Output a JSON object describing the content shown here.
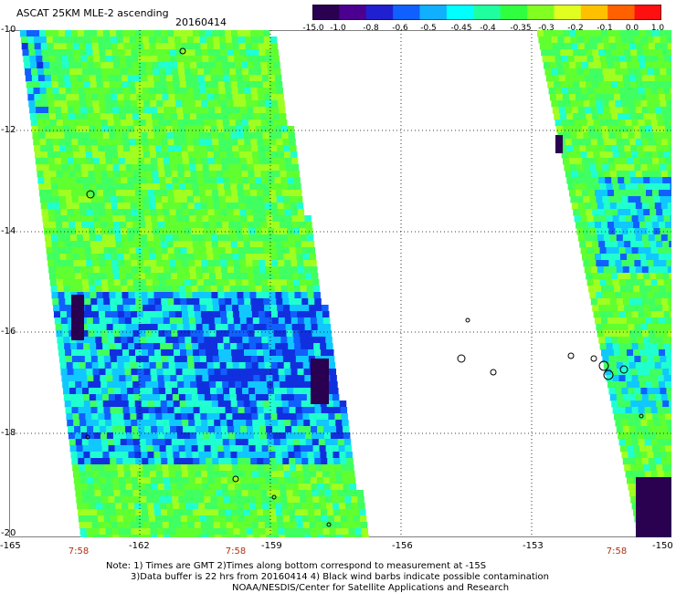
{
  "header": {
    "title": "ASCAT 25KM MLE-2 ascending",
    "date": "20160414"
  },
  "colorbar": {
    "labels": [
      "-15.0",
      "-1.0",
      "-0.8",
      "-0.6",
      "-0.5",
      "-0.45",
      "-0.4",
      "-0.35",
      "-0.3",
      "-0.2",
      "-0.1",
      "0.0",
      "1.0"
    ],
    "colors": [
      "#2a0050",
      "#4b0090",
      "#2020d0",
      "#1060ff",
      "#10b0ff",
      "#00ffff",
      "#20ffa0",
      "#30ff40",
      "#80ff20",
      "#e0ff20",
      "#ffc000",
      "#ff6000",
      "#ff1010"
    ]
  },
  "map": {
    "lat_labels": [
      "-10",
      "-12",
      "-14",
      "-16",
      "-18",
      "-20"
    ],
    "lon_labels": [
      "-165",
      "-162",
      "-159",
      "-156",
      "-153",
      "-150"
    ],
    "time_labels": [
      "7:58",
      "7:58",
      "7:58"
    ],
    "lat_range": [
      -20,
      -10
    ],
    "lon_range": [
      -165,
      -150
    ]
  },
  "footer": {
    "note_line1": "Note: 1) Times are GMT 2)Times along bottom correspond to measurement at -15S",
    "note_line2": "3)Data buffer is 22 hrs from 20160414 4) Black wind barbs indicate possible contamination",
    "note_line3": "NOAA/NESDIS/Center for Satellite Applications and Research"
  }
}
